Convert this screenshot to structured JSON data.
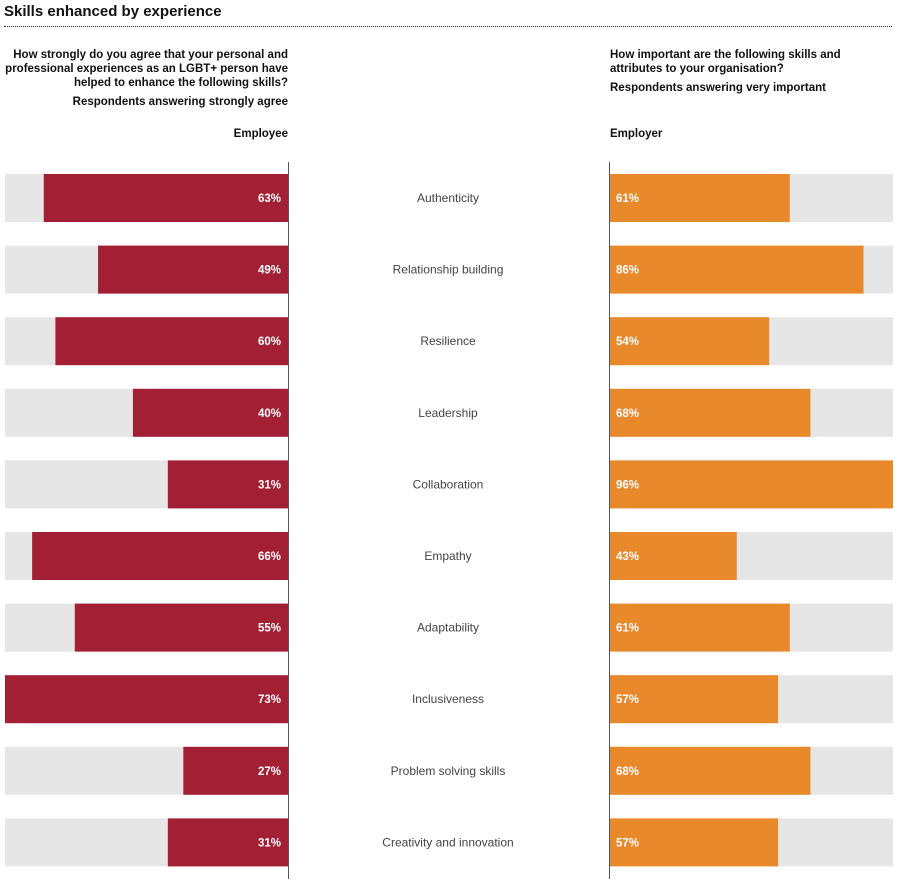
{
  "title": "Skills enhanced by experience",
  "employee_question": {
    "text": "How strongly do you agree that your personal and professional experiences as an LGBT+ person have helped to enhance the following skills?",
    "subtitle": "Respondents answering strongly agree",
    "column_label": "Employee"
  },
  "employer_question": {
    "text": "How important are the following skills and attributes to your organisation?",
    "subtitle": "Respondents answering very important",
    "column_label": "Employer"
  },
  "colors": {
    "employee": "#a31f34",
    "employer": "#e8892b",
    "track": "#e6e6e6",
    "axis": "#555555",
    "category_text": "#444444"
  },
  "chart_data": {
    "type": "bar",
    "categories": [
      "Authenticity",
      "Relationship building",
      "Resilience",
      "Leadership",
      "Collaboration",
      "Empathy",
      "Adaptability",
      "Inclusiveness",
      "Problem solving skills",
      "Creativity and innovation"
    ],
    "series": [
      {
        "name": "Employee",
        "values": [
          63,
          49,
          60,
          40,
          31,
          66,
          55,
          73,
          27,
          31
        ]
      },
      {
        "name": "Employer",
        "values": [
          61,
          86,
          54,
          68,
          96,
          43,
          61,
          57,
          68,
          57
        ]
      }
    ],
    "unit": "%",
    "employee_max": 73,
    "employer_max": 96,
    "grid": false,
    "legend": "none"
  }
}
